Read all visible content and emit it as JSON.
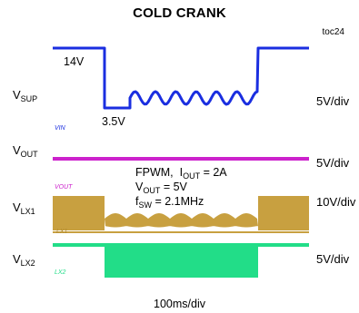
{
  "chart_data": {
    "type": "line",
    "title": "COLD CRANK",
    "figure_ref": "toc24",
    "time_scale": "100ms/div",
    "grid": false,
    "channels": [
      {
        "name": "VSUP",
        "label_main": "V",
        "label_sub": "SUP",
        "scale": "5V/div",
        "color": "#1a2ee0",
        "marker": "VIN",
        "levels_v": {
          "initial": 14,
          "min": 3.5,
          "final": 14
        }
      },
      {
        "name": "VOUT",
        "label_main": "V",
        "label_sub": "OUT",
        "scale": "5V/div",
        "color": "#cc22cc",
        "marker": "VOUT",
        "level_v": 5
      },
      {
        "name": "VLX1",
        "label_main": "V",
        "label_sub": "LX1",
        "scale": "10V/div",
        "color": "#c8a040",
        "marker": "LX1"
      },
      {
        "name": "VLX2",
        "label_main": "V",
        "label_sub": "LX2",
        "scale": "5V/div",
        "color": "#22dd88",
        "marker": "LX2"
      }
    ],
    "annotations": {
      "v_high": "14V",
      "v_low": "3.5V",
      "mode": "FPWM,",
      "iout_main": "I",
      "iout_sub": "OUT",
      "iout_val": " = 2A",
      "vout_main": "V",
      "vout_sub": "OUT",
      "vout_val": " = 5V",
      "fsw_main": "f",
      "fsw_sub": "SW",
      "fsw_val": " = 2.1MHz"
    }
  }
}
